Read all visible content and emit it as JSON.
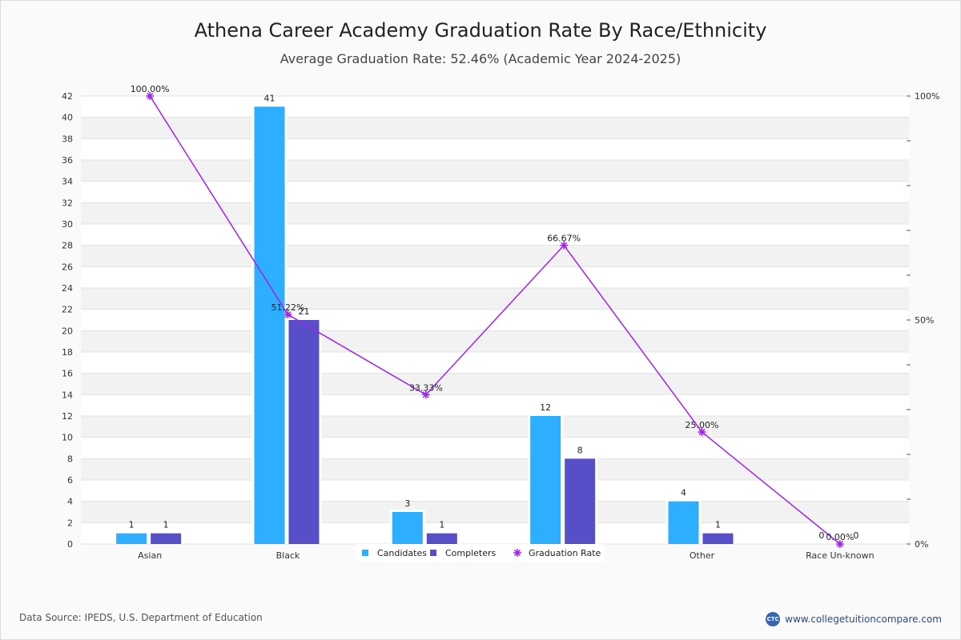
{
  "header": {
    "title": "Athena Career Academy Graduation Rate By Race/Ethnicity",
    "subtitle": "Average Graduation Rate: 52.46% (Academic Year 2024-2025)"
  },
  "footer": {
    "source": "Data Source: IPEDS, U.S. Department of Education",
    "site": "www.collegetuitioncompare.com",
    "logo_text": "CTC"
  },
  "colors": {
    "candidates": "#2eaeff",
    "completers": "#574fc8",
    "rate": "#a020f0"
  },
  "chart_data": {
    "type": "bar",
    "categories": [
      "Asian",
      "Black",
      "",
      "",
      "Other",
      "Race Un-known"
    ],
    "series": [
      {
        "name": "Candidates",
        "values": [
          1,
          41,
          3,
          12,
          4,
          0
        ],
        "labels": [
          "1",
          "41",
          "3",
          "12",
          "4",
          "0"
        ]
      },
      {
        "name": "Completers",
        "values": [
          1,
          21,
          1,
          8,
          1,
          0
        ],
        "labels": [
          "1",
          "21",
          "1",
          "8",
          "1",
          "0"
        ]
      },
      {
        "name": "Graduation Rate",
        "type": "line",
        "axis": "right",
        "values": [
          100,
          51.22,
          33.33,
          66.67,
          25,
          0
        ],
        "labels": [
          "100.00%",
          "51.22%",
          "33.33%",
          "66.67%",
          "25.00%",
          "0.00%"
        ]
      }
    ],
    "ylim": [
      0,
      42
    ],
    "yticks": [
      "0",
      "2",
      "4",
      "6",
      "8",
      "10",
      "12",
      "14",
      "16",
      "18",
      "20",
      "22",
      "24",
      "26",
      "28",
      "30",
      "32",
      "34",
      "36",
      "38",
      "40",
      "42"
    ],
    "y2lim": [
      0,
      100
    ],
    "y2ticks": [
      {
        "value": 0,
        "label": "0%"
      },
      {
        "value": 50,
        "label": "50%"
      },
      {
        "value": 100,
        "label": "100%"
      }
    ],
    "grid": true,
    "legend": "bottom-center"
  }
}
